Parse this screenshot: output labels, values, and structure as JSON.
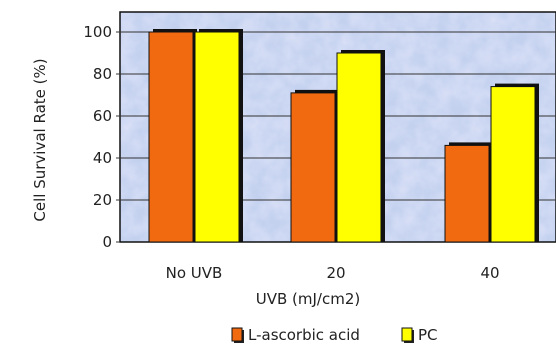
{
  "chart_data": {
    "type": "bar",
    "title": "",
    "xlabel": "UVB (mJ/cm2)",
    "ylabel": "Cell Survival Rate (%)",
    "ylim": [
      0,
      100
    ],
    "yticks": [
      "0",
      "20",
      "40",
      "60",
      "80",
      "100"
    ],
    "categories": [
      "No UVB",
      "20",
      "40"
    ],
    "series": [
      {
        "name": "L-ascorbic acid",
        "values": [
          100,
          71,
          46
        ],
        "color": "#f26a10"
      },
      {
        "name": "PC",
        "values": [
          100,
          90,
          74
        ],
        "color": "#ffff00"
      }
    ],
    "grid": true,
    "legend": "bottom",
    "background": "mottled light blue"
  }
}
